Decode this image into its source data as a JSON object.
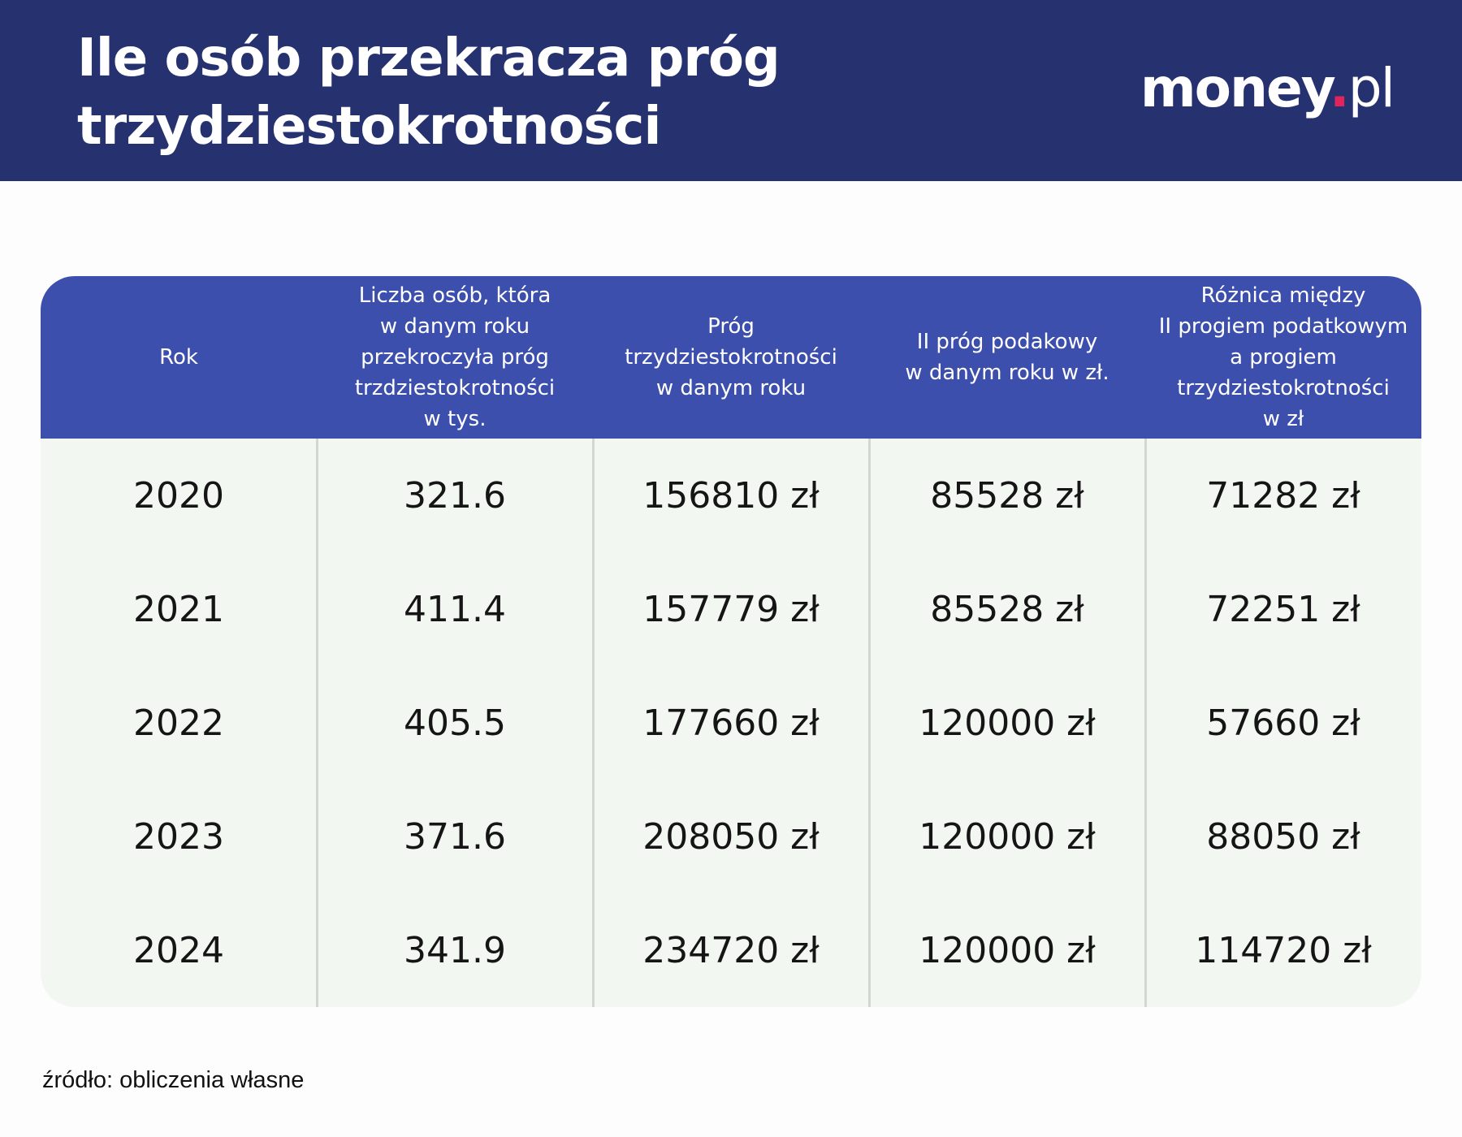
{
  "header": {
    "title": "Ile osób przekracza próg\ntrzydziestokrotności",
    "logo": {
      "brand": "money",
      "dot": ".",
      "suffix": "pl"
    }
  },
  "chart_data": {
    "type": "table",
    "title": "Ile osób przekracza próg trzydziestokrotności",
    "columns": [
      "Rok",
      "Liczba osób, która\nw danym roku\nprzekroczyła próg\ntrzdziestokrotności\nw tys.",
      "Próg\ntrzydziestokrotności\nw danym roku",
      "II próg podakowy\nw danym roku w zł.",
      "Różnica między\nII progiem podatkowym\na progiem\ntrzydziestokrotności\nw zł"
    ],
    "rows": [
      [
        "2020",
        "321.6",
        "156810 zł",
        "85528 zł",
        "71282 zł"
      ],
      [
        "2021",
        "411.4",
        "157779 zł",
        "85528 zł",
        "72251 zł"
      ],
      [
        "2022",
        "405.5",
        "177660 zł",
        "120000 zł",
        "57660 zł"
      ],
      [
        "2023",
        "371.6",
        "208050 zł",
        "120000 zł",
        "88050 zł"
      ],
      [
        "2024",
        "341.9",
        "234720 zł",
        "120000 zł",
        "114720 zł"
      ]
    ]
  },
  "footer": {
    "source": "źródło: obliczenia własne"
  },
  "colors": {
    "header_bg": "#263270",
    "table_header_bg": "#3d4fad",
    "table_body_bg": "#f2f7f1",
    "logo_dot": "#e0245e"
  }
}
